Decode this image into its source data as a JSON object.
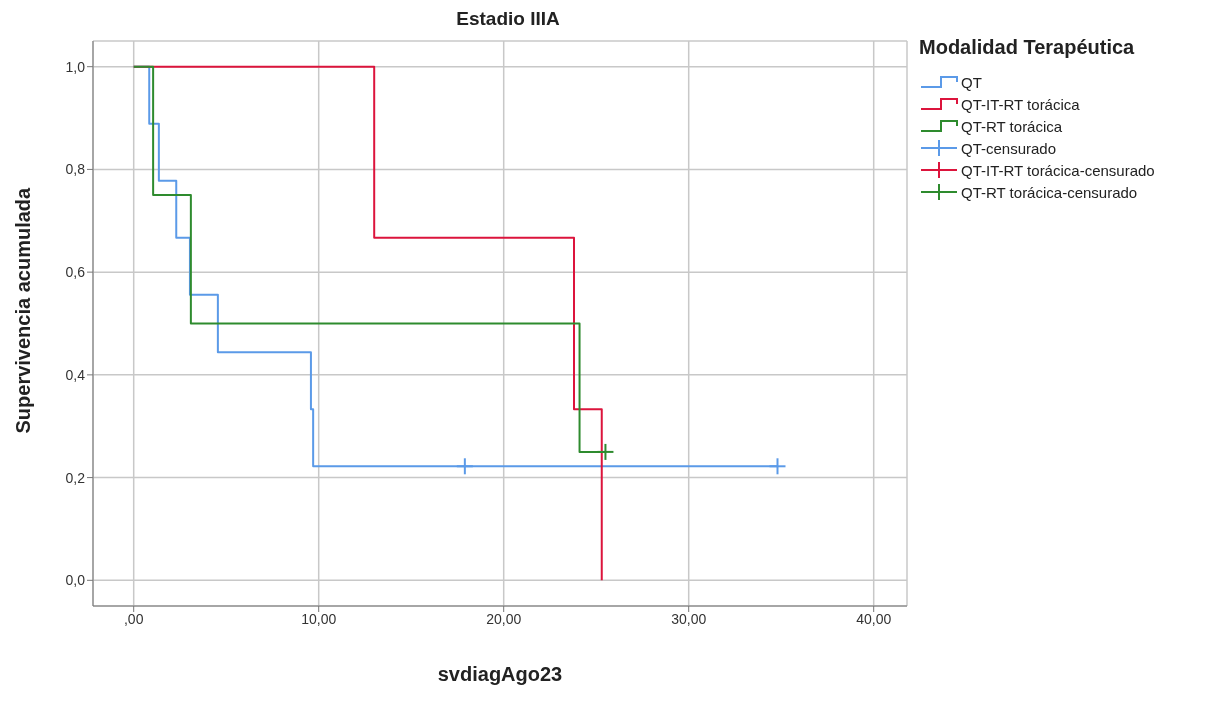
{
  "chart_data": {
    "type": "step",
    "title": "Estadio IIIA",
    "xlabel": "svdiagAgo23",
    "ylabel": "Supervivencia acumulada",
    "legend_title": "Modalidad Terapéutica",
    "legend": "right",
    "grid": true,
    "marker": "none",
    "xlim": [
      -2.2,
      41.8
    ],
    "ylim": [
      -0.05,
      1.05
    ],
    "xticks": [
      {
        "value": 0,
        "label": ",00"
      },
      {
        "value": 10,
        "label": "10,00"
      },
      {
        "value": 20,
        "label": "20,00"
      },
      {
        "value": 30,
        "label": "30,00"
      },
      {
        "value": 40,
        "label": "40,00"
      }
    ],
    "yticks": [
      {
        "value": 0,
        "label": "0,0"
      },
      {
        "value": 0.2,
        "label": "0,2"
      },
      {
        "value": 0.4,
        "label": "0,4"
      },
      {
        "value": 0.6,
        "label": "0,6"
      },
      {
        "value": 0.8,
        "label": "0,8"
      },
      {
        "value": 1,
        "label": "1,0"
      }
    ],
    "series": [
      {
        "name": "QT",
        "color": "#5b9ae8",
        "x": [
          0,
          0.84,
          1.36,
          2.3,
          3.04,
          4.55,
          9.58,
          9.7,
          34.8
        ],
        "values": [
          1,
          0.889,
          0.778,
          0.667,
          0.556,
          0.444,
          0.333,
          0.222,
          0.222
        ]
      },
      {
        "name": "QT-IT-RT torácica",
        "color": "#dc143c",
        "x": [
          0,
          13.0,
          23.8,
          25.3
        ],
        "values": [
          1,
          0.667,
          0.333,
          0
        ]
      },
      {
        "name": "QT-RT torácica",
        "color": "#2e8b2e",
        "x": [
          0,
          1.05,
          3.09,
          24.1,
          25.5
        ],
        "values": [
          1,
          0.75,
          0.5,
          0.25,
          0.25
        ]
      },
      {
        "name": "QT-censurado",
        "type": "scatter",
        "marker": "cross",
        "color": "#5b9ae8",
        "x": [
          17.9,
          34.8
        ],
        "values": [
          0.222,
          0.222
        ]
      },
      {
        "name": "QT-IT-RT torácica-censurado",
        "type": "scatter",
        "marker": "cross",
        "color": "#dc143c"
      },
      {
        "name": "QT-RT torácica-censurado",
        "type": "scatter",
        "marker": "cross",
        "color": "#2e8b2e",
        "x": [
          25.5
        ],
        "values": [
          0.25
        ]
      }
    ]
  }
}
